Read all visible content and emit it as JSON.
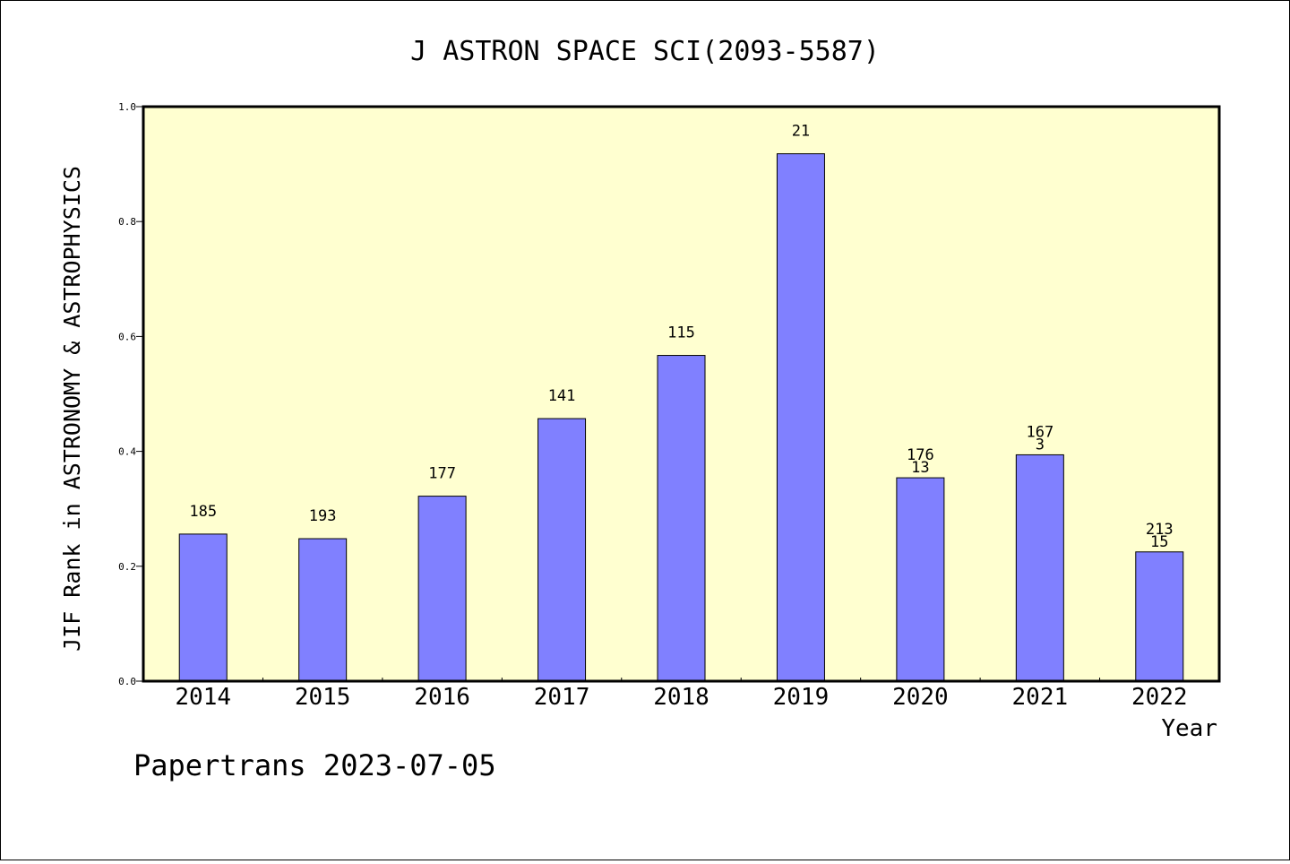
{
  "chart_data": {
    "type": "bar",
    "title": "J ASTRON SPACE SCI(2093-5587)",
    "xlabel": "Year",
    "ylabel": "JIF Rank in ASTRONOMY & ASTROPHYSICS",
    "ylim": [
      0,
      1.0
    ],
    "yticks": [
      "0.0",
      "0.2",
      "0.4",
      "0.6",
      "0.8",
      "1.0"
    ],
    "categories": [
      "2014",
      "2015",
      "2016",
      "2017",
      "2018",
      "2019",
      "2020",
      "2021",
      "2022"
    ],
    "values": [
      0.256,
      0.248,
      0.322,
      0.457,
      0.567,
      0.918,
      0.354,
      0.394,
      0.225
    ],
    "labels": [
      [
        "185"
      ],
      [
        "193"
      ],
      [
        "177"
      ],
      [
        "141"
      ],
      [
        "115"
      ],
      [
        "21"
      ],
      [
        "176",
        "13"
      ],
      [
        "167",
        "3"
      ],
      [
        "213",
        "15"
      ]
    ],
    "grid": false,
    "colors": {
      "bar": "#8080ff",
      "plot_bg": "#ffffd0"
    }
  },
  "footer": "Papertrans 2023-07-05"
}
